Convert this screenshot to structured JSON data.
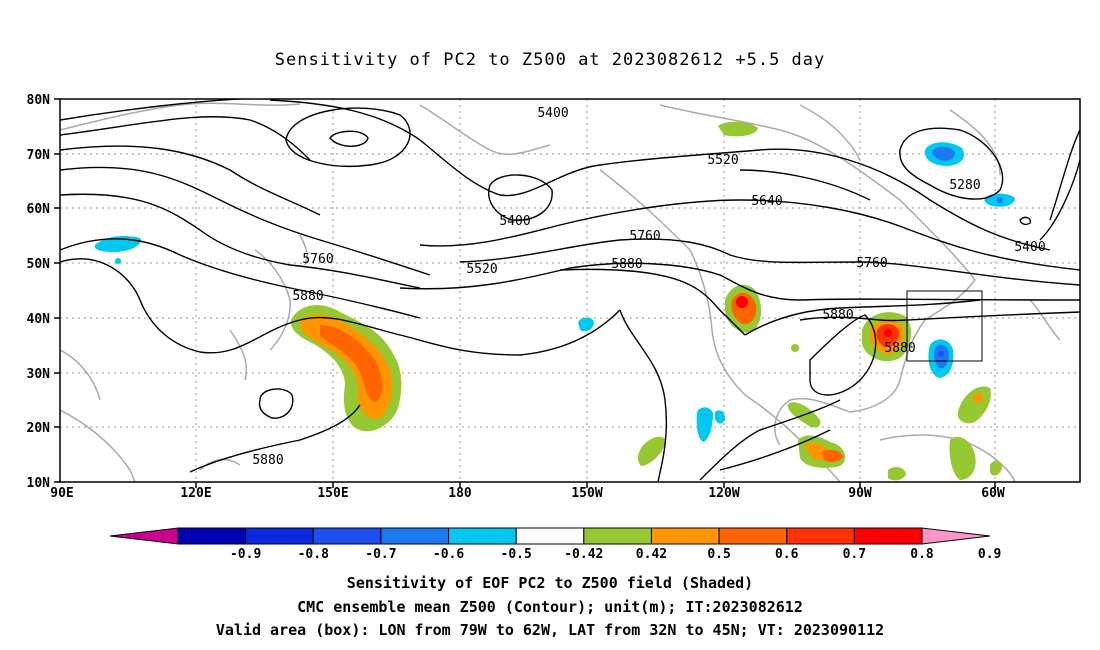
{
  "title": "Sensitivity of PC2 to Z500 at 2023082612 +5.5 day",
  "lat_labels": [
    "80N",
    "70N",
    "60N",
    "50N",
    "40N",
    "30N",
    "20N",
    "10N"
  ],
  "lon_labels": [
    "90E",
    "120E",
    "150E",
    "180",
    "150W",
    "120W",
    "90W",
    "60W"
  ],
  "contour_labels": [
    "5400",
    "5520",
    "5280",
    "5640",
    "5400",
    "5400",
    "5760",
    "5880",
    "5520",
    "5760",
    "5880",
    "5760",
    "5880",
    "5880",
    "5880"
  ],
  "colorbar": {
    "tick_labels": [
      "-0.9",
      "-0.8",
      "-0.7",
      "-0.6",
      "-0.5",
      "-0.42",
      "0.42",
      "0.5",
      "0.6",
      "0.7",
      "0.8",
      "0.9"
    ],
    "colors": [
      "#c8008c",
      "#0000b4",
      "#0a28dc",
      "#1e50f0",
      "#1e78f0",
      "#00c8f0",
      "#ffffff",
      "#96c832",
      "#ff9600",
      "#ff6400",
      "#ff3200",
      "#ff0000",
      "#ff96c8"
    ]
  },
  "footer": {
    "line1": "Sensitivity of EOF PC2 to Z500 field (Shaded)",
    "line2": "CMC ensemble mean Z500 (Contour); unit(m); IT:2023082612",
    "line3": "Valid area (box): LON from 79W to 62W, LAT from 32N to 45N; VT: 2023090112"
  }
}
